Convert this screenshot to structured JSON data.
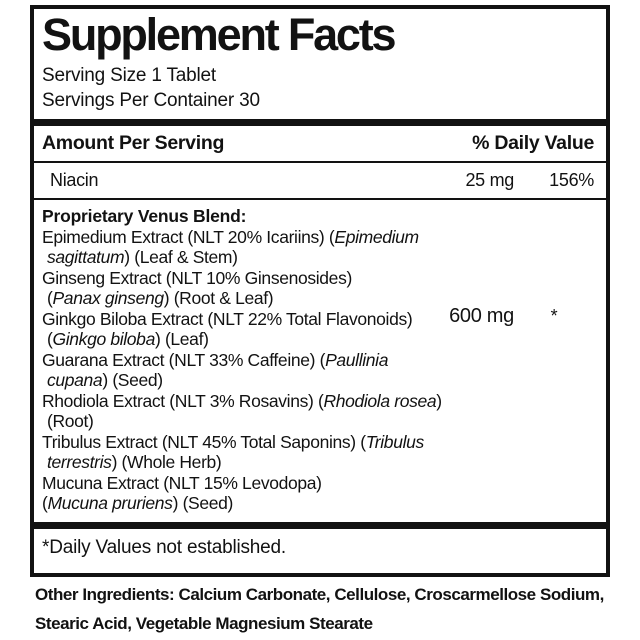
{
  "panel": {
    "title": "Supplement Facts",
    "serving_size": "Serving Size 1 Tablet",
    "servings_per_container": "Servings Per Container 30",
    "header": {
      "amount_col": "Amount Per Serving",
      "dv_col": "% Daily Value"
    },
    "rows": [
      {
        "name": "Niacin",
        "amount": "25 mg",
        "dv": "156%"
      }
    ],
    "blend": {
      "amount": "600 mg",
      "dv": "*",
      "lines": [
        {
          "bold": true,
          "indent": false,
          "segments": [
            {
              "text": "Proprietary Venus Blend:",
              "italic": false
            }
          ]
        },
        {
          "bold": false,
          "indent": false,
          "segments": [
            {
              "text": "Epimedium Extract (NLT 20% Icariins) (",
              "italic": false
            },
            {
              "text": "Epimedium",
              "italic": true
            }
          ]
        },
        {
          "bold": false,
          "indent": true,
          "segments": [
            {
              "text": "sagittatum",
              "italic": true
            },
            {
              "text": ") (Leaf & Stem)",
              "italic": false
            }
          ]
        },
        {
          "bold": false,
          "indent": false,
          "segments": [
            {
              "text": "Ginseng Extract (NLT 10% Ginsenosides)",
              "italic": false
            }
          ]
        },
        {
          "bold": false,
          "indent": true,
          "segments": [
            {
              "text": "(",
              "italic": false
            },
            {
              "text": "Panax ginseng",
              "italic": true
            },
            {
              "text": ") (Root & Leaf)",
              "italic": false
            }
          ]
        },
        {
          "bold": false,
          "indent": false,
          "segments": [
            {
              "text": "Ginkgo Biloba Extract (NLT 22% Total Flavonoids)",
              "italic": false
            }
          ]
        },
        {
          "bold": false,
          "indent": true,
          "segments": [
            {
              "text": "(",
              "italic": false
            },
            {
              "text": "Ginkgo biloba",
              "italic": true
            },
            {
              "text": ") (Leaf)",
              "italic": false
            }
          ]
        },
        {
          "bold": false,
          "indent": false,
          "segments": [
            {
              "text": "Guarana Extract (NLT 33% Caffeine) (",
              "italic": false
            },
            {
              "text": "Paullinia",
              "italic": true
            }
          ]
        },
        {
          "bold": false,
          "indent": true,
          "segments": [
            {
              "text": "cupana",
              "italic": true
            },
            {
              "text": ") (Seed)",
              "italic": false
            }
          ]
        },
        {
          "bold": false,
          "indent": false,
          "segments": [
            {
              "text": "Rhodiola Extract (NLT 3% Rosavins) (",
              "italic": false
            },
            {
              "text": "Rhodiola rosea",
              "italic": true
            },
            {
              "text": ")",
              "italic": false
            }
          ]
        },
        {
          "bold": false,
          "indent": true,
          "segments": [
            {
              "text": "(Root)",
              "italic": false
            }
          ]
        },
        {
          "bold": false,
          "indent": false,
          "segments": [
            {
              "text": "Tribulus Extract (NLT 45% Total Saponins) (",
              "italic": false
            },
            {
              "text": "Tribulus",
              "italic": true
            }
          ]
        },
        {
          "bold": false,
          "indent": true,
          "segments": [
            {
              "text": "terrestris",
              "italic": true
            },
            {
              "text": ") (Whole Herb)",
              "italic": false
            }
          ]
        },
        {
          "bold": false,
          "indent": false,
          "segments": [
            {
              "text": "Mucuna Extract (NLT 15% Levodopa)",
              "italic": false
            }
          ]
        },
        {
          "bold": false,
          "indent": false,
          "segments": [
            {
              "text": "(",
              "italic": false
            },
            {
              "text": "Mucuna pruriens",
              "italic": true
            },
            {
              "text": ") (Seed)",
              "italic": false
            }
          ]
        }
      ]
    },
    "footnote": "*Daily Values not established."
  },
  "other_ingredients": "Other Ingredients: Calcium Carbonate, Cellulose, Croscarmellose Sodium, Stearic Acid, Vegetable Magnesium Stearate",
  "colors": {
    "ink": "#121212",
    "background": "#ffffff"
  }
}
